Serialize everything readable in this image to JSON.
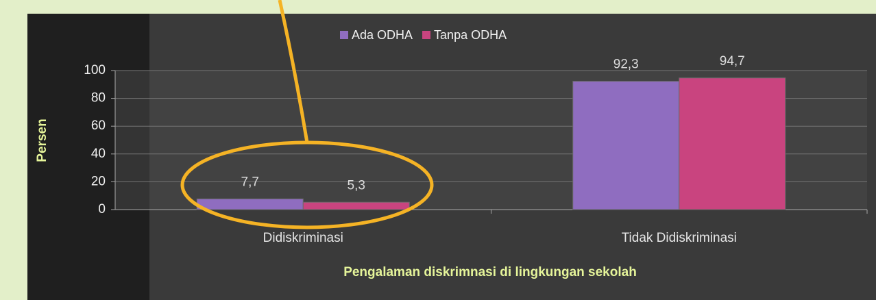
{
  "chart_data": {
    "type": "bar",
    "categories": [
      "Didiskriminasi",
      "Tidak Didiskriminasi"
    ],
    "series": [
      {
        "name": "Ada ODHA",
        "color": "#8f6dc0",
        "values": [
          7.7,
          92.3
        ],
        "value_labels": [
          "7,7",
          "92,3"
        ]
      },
      {
        "name": "Tanpa ODHA",
        "color": "#c9447f",
        "values": [
          5.3,
          94.7
        ],
        "value_labels": [
          "5,3",
          "94,7"
        ]
      }
    ],
    "ylim": [
      0,
      100
    ],
    "yticks": [
      0,
      20,
      40,
      60,
      80,
      100
    ],
    "grid": true,
    "y_label": "Persen",
    "x_label": "Pengalaman diskrimnasi di lingkungan sekolah",
    "legend": "top"
  }
}
